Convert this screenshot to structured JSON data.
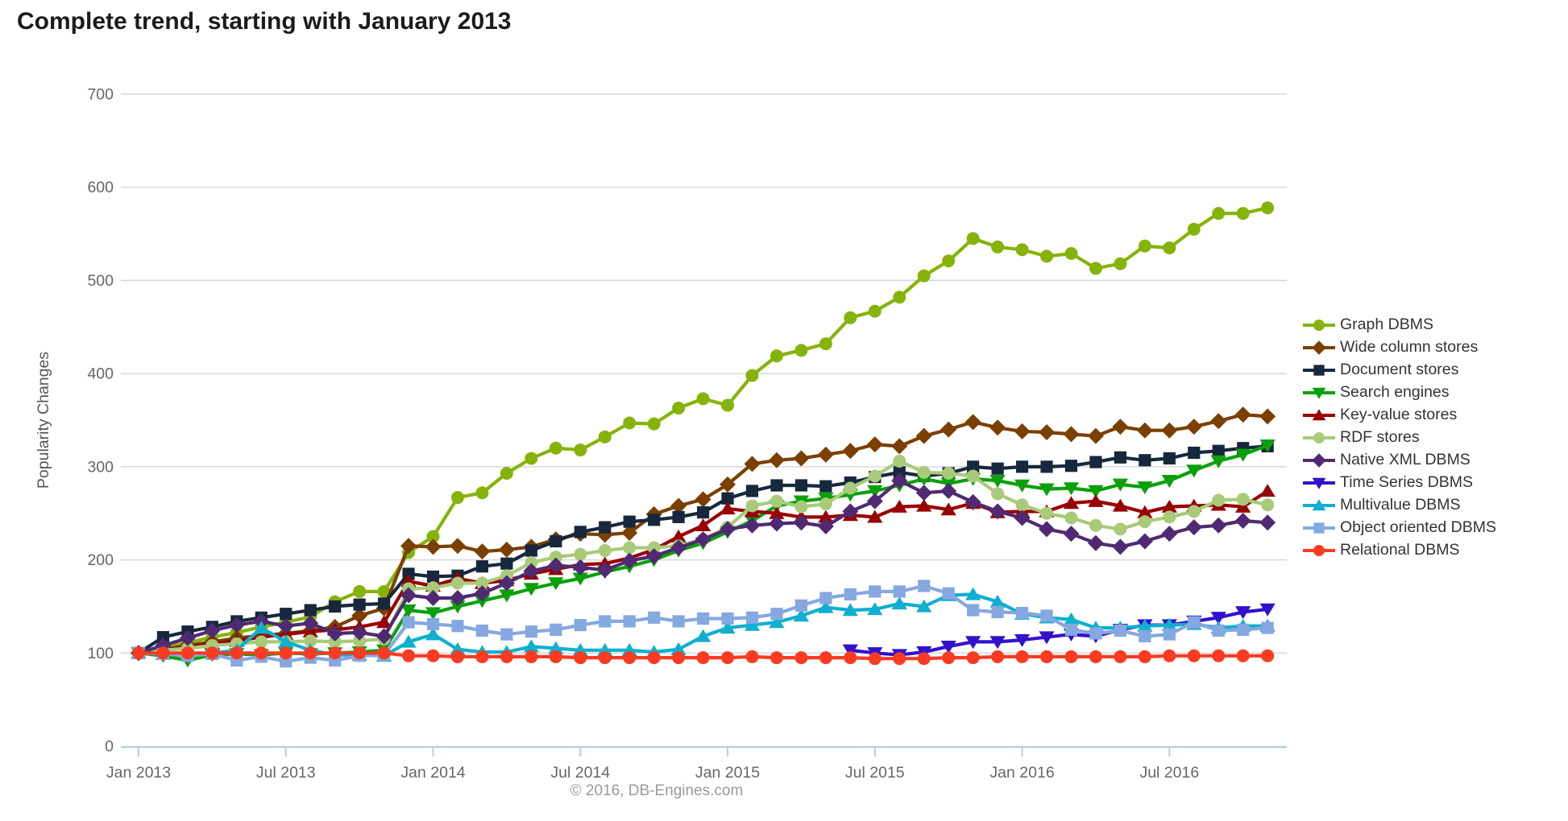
{
  "title": "Complete trend, starting with January 2013",
  "y_axis_label": "Popularity Changes",
  "footer": "© 2016, DB-Engines.com",
  "colors": {
    "grid": "#d9d9d9",
    "axis": "#b9cfdd",
    "tick_text": "#666666",
    "title_text": "#1b1b1b",
    "legend_text": "#333333",
    "footer_text": "#999999"
  },
  "chart_data": {
    "type": "line",
    "title": "Complete trend, starting with January 2013",
    "xlabel": "",
    "ylabel": "Popularity Changes",
    "x_unit": "month",
    "x_start": "Jan 2013",
    "x_end": "Nov 2016",
    "months_count": 47,
    "ylim": [
      0,
      700
    ],
    "grid": "horizontal",
    "legend_position": "right",
    "x_tick_labels": [
      "Jan 2013",
      "Jul 2013",
      "Jan 2014",
      "Jul 2014",
      "Jan 2015",
      "Jul 2015",
      "Jan 2016",
      "Jul 2016"
    ],
    "x_tick_month_indices": [
      0,
      6,
      12,
      18,
      24,
      30,
      36,
      42
    ],
    "y_tick_labels": [
      "0",
      "100",
      "200",
      "300",
      "400",
      "500",
      "600",
      "700"
    ],
    "series": [
      {
        "name": "Graph DBMS",
        "color": "#86b30a",
        "marker": "circle",
        "start": 0,
        "values": [
          100,
          106,
          111,
          117,
          122,
          128,
          133,
          139,
          155,
          166,
          166,
          208,
          225,
          267,
          272,
          293,
          309,
          320,
          318,
          332,
          347,
          346,
          363,
          373,
          366,
          398,
          419,
          425,
          432,
          460,
          467,
          482,
          505,
          521,
          545,
          536,
          533,
          526,
          529,
          513,
          518,
          537,
          535,
          555,
          572,
          572,
          578
        ]
      },
      {
        "name": "Wide column stores",
        "color": "#7b3f00",
        "marker": "diamond",
        "start": 0,
        "values": [
          100,
          104,
          108,
          112,
          116,
          119,
          121,
          124,
          128,
          140,
          148,
          215,
          214,
          215,
          209,
          211,
          214,
          222,
          228,
          227,
          229,
          249,
          258,
          265,
          281,
          303,
          307,
          309,
          313,
          317,
          324,
          322,
          333,
          340,
          348,
          342,
          338,
          337,
          335,
          333,
          343,
          339,
          339,
          343,
          349,
          356,
          354
        ]
      },
      {
        "name": "Document stores",
        "color": "#17283d",
        "marker": "square",
        "start": 0,
        "values": [
          100,
          117,
          123,
          128,
          134,
          138,
          142,
          146,
          150,
          152,
          153,
          185,
          182,
          183,
          193,
          196,
          210,
          220,
          230,
          235,
          241,
          243,
          246,
          251,
          266,
          274,
          280,
          280,
          279,
          283,
          289,
          294,
          290,
          293,
          300,
          298,
          300,
          300,
          301,
          305,
          310,
          307,
          309,
          315,
          317,
          320,
          322
        ]
      },
      {
        "name": "Search engines",
        "color": "#0ba00b",
        "marker": "triangle-down",
        "start": 0,
        "values": [
          100,
          97,
          92,
          98,
          99,
          98,
          100,
          99,
          100,
          101,
          103,
          146,
          143,
          150,
          156,
          162,
          169,
          175,
          180,
          187,
          193,
          200,
          210,
          218,
          230,
          242,
          258,
          263,
          266,
          270,
          274,
          280,
          287,
          282,
          287,
          285,
          280,
          276,
          277,
          274,
          281,
          278,
          285,
          296,
          306,
          313,
          323
        ]
      },
      {
        "name": "Key-value stores",
        "color": "#990000",
        "marker": "triangle-up",
        "start": 0,
        "values": [
          100,
          103,
          106,
          110,
          113,
          117,
          120,
          123,
          125,
          128,
          133,
          177,
          172,
          180,
          175,
          178,
          185,
          190,
          195,
          196,
          202,
          211,
          225,
          237,
          255,
          252,
          250,
          246,
          246,
          248,
          246,
          257,
          258,
          254,
          261,
          251,
          252,
          252,
          261,
          263,
          258,
          251,
          257,
          258,
          259,
          257,
          274
        ]
      },
      {
        "name": "RDF stores",
        "color": "#a9cb79",
        "marker": "circle",
        "start": 0,
        "values": [
          100,
          103,
          105,
          108,
          110,
          112,
          112,
          113,
          112,
          113,
          115,
          169,
          170,
          175,
          175,
          183,
          197,
          203,
          206,
          210,
          213,
          213,
          215,
          222,
          235,
          258,
          263,
          257,
          260,
          277,
          290,
          306,
          294,
          293,
          290,
          271,
          259,
          250,
          245,
          237,
          233,
          241,
          246,
          252,
          264,
          265,
          259
        ]
      },
      {
        "name": "Native XML DBMS",
        "color": "#4f2a73",
        "marker": "diamond",
        "start": 0,
        "values": [
          100,
          108,
          116,
          124,
          130,
          134,
          129,
          132,
          121,
          122,
          118,
          162,
          159,
          159,
          164,
          175,
          188,
          194,
          192,
          189,
          199,
          204,
          213,
          222,
          233,
          237,
          239,
          240,
          236,
          252,
          263,
          285,
          272,
          274,
          262,
          252,
          245,
          233,
          228,
          218,
          214,
          220,
          228,
          235,
          237,
          242,
          240
        ]
      },
      {
        "name": "Time Series DBMS",
        "color": "#3311cc",
        "marker": "triangle-down",
        "start": 29,
        "values": [
          103,
          100,
          98,
          101,
          107,
          112,
          112,
          114,
          117,
          120,
          118,
          125,
          130,
          130,
          134,
          138,
          144,
          147
        ]
      },
      {
        "name": "Multivalue DBMS",
        "color": "#0fafcf",
        "marker": "triangle-up",
        "start": 0,
        "values": [
          100,
          99,
          98,
          100,
          103,
          127,
          112,
          103,
          98,
          98,
          97,
          112,
          120,
          104,
          101,
          101,
          107,
          105,
          103,
          103,
          103,
          101,
          104,
          118,
          127,
          130,
          133,
          140,
          149,
          146,
          147,
          153,
          150,
          162,
          163,
          155,
          142,
          138,
          136,
          127,
          127,
          129,
          130,
          131,
          127,
          129,
          129
        ]
      },
      {
        "name": "Object oriented DBMS",
        "color": "#85a8e0",
        "marker": "square",
        "start": 0,
        "values": [
          100,
          99,
          97,
          99,
          92,
          96,
          91,
          95,
          92,
          97,
          98,
          133,
          131,
          129,
          124,
          120,
          123,
          125,
          130,
          134,
          134,
          138,
          134,
          137,
          137,
          138,
          142,
          151,
          159,
          163,
          166,
          166,
          172,
          164,
          146,
          144,
          143,
          140,
          125,
          121,
          124,
          118,
          120,
          133,
          124,
          125,
          127
        ]
      },
      {
        "name": "Relational DBMS",
        "color": "#f93b22",
        "marker": "circle",
        "start": 0,
        "values": [
          100,
          100,
          100,
          100,
          100,
          100,
          100,
          100,
          100,
          100,
          100,
          97,
          97,
          96,
          96,
          96,
          96,
          96,
          95,
          95,
          95,
          95,
          95,
          95,
          95,
          96,
          95,
          95,
          95,
          95,
          94,
          94,
          94,
          95,
          95,
          96,
          96,
          96,
          96,
          96,
          96,
          96,
          97,
          97,
          97,
          97,
          97
        ]
      }
    ]
  }
}
